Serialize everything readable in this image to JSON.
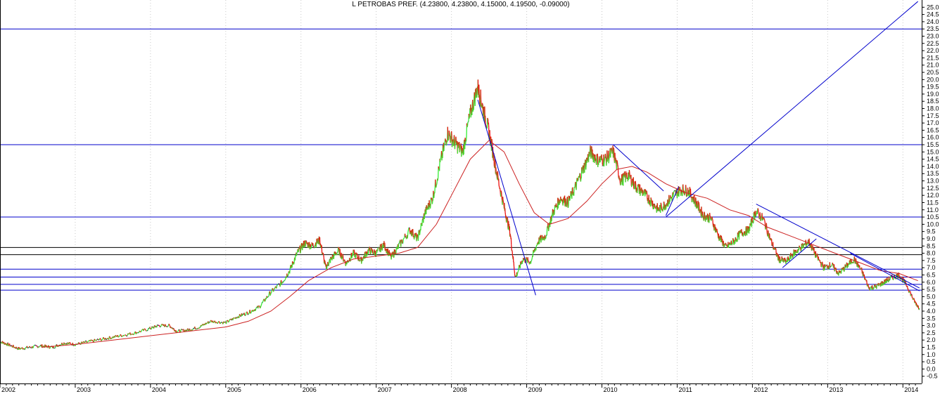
{
  "chart_data": {
    "type": "line",
    "title": "L PETROBAS PREF. (4.23800, 4.23800, 4.15000, 4.19500, -0.09000)",
    "xlabel": "",
    "ylabel": "",
    "xlim": [
      2002.0,
      2014.25
    ],
    "ylim": [
      -1.0,
      25.5
    ],
    "grid": true,
    "legend": "none",
    "x_ticks": [
      "2002",
      "2003",
      "2004",
      "2005",
      "2006",
      "2007",
      "2008",
      "2009",
      "2010",
      "2011",
      "2012",
      "2013",
      "2014"
    ],
    "y_ticks": [
      "-0.5",
      "0.0",
      "0.5",
      "1.0",
      "1.5",
      "2.0",
      "2.5",
      "3.0",
      "3.5",
      "4.0",
      "4.5",
      "5.0",
      "5.5",
      "6.0",
      "6.5",
      "7.0",
      "7.5",
      "8.0",
      "8.5",
      "9.0",
      "9.5",
      "10.0",
      "10.5",
      "11.0",
      "11.5",
      "12.0",
      "12.5",
      "13.0",
      "13.5",
      "14.0",
      "14.5",
      "15.0",
      "15.5",
      "16.0",
      "16.5",
      "17.0",
      "17.5",
      "18.0",
      "18.5",
      "19.0",
      "19.5",
      "20.0",
      "20.5",
      "21.0",
      "21.5",
      "22.0",
      "22.5",
      "23.0",
      "23.5",
      "24.0",
      "24.5",
      "25.0"
    ],
    "colors": {
      "up": "#33ee33",
      "down": "#ee1111",
      "neutral": "#000066",
      "moving_average": "#cc2222",
      "support_blue": "#0000cc",
      "support_black": "#000000",
      "trendline": "#0000cc",
      "grid": "#c8c8c8"
    },
    "series": [
      {
        "values": [
          [
            2002.0,
            1.9
          ],
          [
            2002.1,
            1.7
          ],
          [
            2002.25,
            1.4
          ],
          [
            2002.4,
            1.5
          ],
          [
            2002.55,
            1.6
          ],
          [
            2002.7,
            1.5
          ],
          [
            2002.85,
            1.8
          ],
          [
            2003.0,
            1.7
          ],
          [
            2003.2,
            1.9
          ],
          [
            2003.4,
            2.1
          ],
          [
            2003.6,
            2.3
          ],
          [
            2003.8,
            2.5
          ],
          [
            2004.0,
            2.8
          ],
          [
            2004.1,
            3.0
          ],
          [
            2004.25,
            3.0
          ],
          [
            2004.35,
            2.6
          ],
          [
            2004.5,
            2.7
          ],
          [
            2004.65,
            2.9
          ],
          [
            2004.8,
            3.3
          ],
          [
            2005.0,
            3.2
          ],
          [
            2005.15,
            3.6
          ],
          [
            2005.3,
            3.9
          ],
          [
            2005.45,
            4.3
          ],
          [
            2005.6,
            5.3
          ],
          [
            2005.75,
            6.0
          ],
          [
            2005.85,
            6.8
          ],
          [
            2005.95,
            8.0
          ],
          [
            2006.05,
            8.7
          ],
          [
            2006.15,
            8.5
          ],
          [
            2006.25,
            8.9
          ],
          [
            2006.33,
            7.0
          ],
          [
            2006.4,
            7.6
          ],
          [
            2006.5,
            8.2
          ],
          [
            2006.6,
            7.3
          ],
          [
            2006.7,
            8.0
          ],
          [
            2006.8,
            7.5
          ],
          [
            2006.9,
            8.2
          ],
          [
            2007.0,
            8.0
          ],
          [
            2007.1,
            8.6
          ],
          [
            2007.2,
            7.7
          ],
          [
            2007.3,
            8.5
          ],
          [
            2007.45,
            9.6
          ],
          [
            2007.55,
            9.0
          ],
          [
            2007.65,
            10.8
          ],
          [
            2007.75,
            11.8
          ],
          [
            2007.85,
            14.2
          ],
          [
            2007.95,
            16.3
          ],
          [
            2008.05,
            15.6
          ],
          [
            2008.15,
            15.0
          ],
          [
            2008.25,
            17.6
          ],
          [
            2008.35,
            19.5
          ],
          [
            2008.42,
            18.0
          ],
          [
            2008.5,
            16.4
          ],
          [
            2008.6,
            13.6
          ],
          [
            2008.7,
            11.2
          ],
          [
            2008.78,
            9.4
          ],
          [
            2008.85,
            6.3
          ],
          [
            2008.95,
            7.6
          ],
          [
            2009.05,
            7.4
          ],
          [
            2009.15,
            8.8
          ],
          [
            2009.25,
            9.2
          ],
          [
            2009.35,
            10.8
          ],
          [
            2009.45,
            11.8
          ],
          [
            2009.55,
            11.5
          ],
          [
            2009.65,
            12.6
          ],
          [
            2009.75,
            13.8
          ],
          [
            2009.85,
            15.0
          ],
          [
            2009.95,
            14.4
          ],
          [
            2010.05,
            14.5
          ],
          [
            2010.15,
            15.0
          ],
          [
            2010.25,
            13.0
          ],
          [
            2010.35,
            13.4
          ],
          [
            2010.45,
            12.6
          ],
          [
            2010.55,
            12.2
          ],
          [
            2010.65,
            11.6
          ],
          [
            2010.75,
            11.0
          ],
          [
            2010.85,
            11.4
          ],
          [
            2010.95,
            12.0
          ],
          [
            2011.05,
            12.4
          ],
          [
            2011.15,
            12.3
          ],
          [
            2011.25,
            11.5
          ],
          [
            2011.35,
            10.6
          ],
          [
            2011.45,
            10.4
          ],
          [
            2011.55,
            9.2
          ],
          [
            2011.65,
            8.4
          ],
          [
            2011.75,
            8.8
          ],
          [
            2011.85,
            9.4
          ],
          [
            2011.95,
            9.6
          ],
          [
            2012.05,
            10.9
          ],
          [
            2012.15,
            10.3
          ],
          [
            2012.25,
            8.8
          ],
          [
            2012.35,
            7.6
          ],
          [
            2012.45,
            7.4
          ],
          [
            2012.55,
            8.0
          ],
          [
            2012.65,
            8.4
          ],
          [
            2012.75,
            8.8
          ],
          [
            2012.85,
            7.8
          ],
          [
            2012.95,
            7.0
          ],
          [
            2013.05,
            7.2
          ],
          [
            2013.15,
            6.6
          ],
          [
            2013.25,
            7.1
          ],
          [
            2013.35,
            7.6
          ],
          [
            2013.45,
            6.8
          ],
          [
            2013.55,
            5.6
          ],
          [
            2013.65,
            5.7
          ],
          [
            2013.75,
            6.0
          ],
          [
            2013.85,
            6.3
          ],
          [
            2013.95,
            6.5
          ],
          [
            2014.05,
            5.8
          ],
          [
            2014.15,
            4.7
          ],
          [
            2014.22,
            4.2
          ]
        ]
      },
      {
        "values": [
          [
            2002.55,
            1.5
          ],
          [
            2003.0,
            1.7
          ],
          [
            2003.5,
            2.0
          ],
          [
            2004.0,
            2.3
          ],
          [
            2004.5,
            2.6
          ],
          [
            2005.0,
            2.9
          ],
          [
            2005.3,
            3.3
          ],
          [
            2005.6,
            4.0
          ],
          [
            2005.85,
            5.0
          ],
          [
            2006.1,
            6.1
          ],
          [
            2006.4,
            7.0
          ],
          [
            2006.7,
            7.6
          ],
          [
            2007.0,
            7.8
          ],
          [
            2007.3,
            8.0
          ],
          [
            2007.55,
            8.4
          ],
          [
            2007.8,
            10.0
          ],
          [
            2008.0,
            12.0
          ],
          [
            2008.25,
            14.5
          ],
          [
            2008.5,
            15.8
          ],
          [
            2008.7,
            15.0
          ],
          [
            2008.9,
            12.8
          ],
          [
            2009.1,
            10.8
          ],
          [
            2009.3,
            10.0
          ],
          [
            2009.55,
            10.4
          ],
          [
            2009.8,
            11.6
          ],
          [
            2010.0,
            12.8
          ],
          [
            2010.2,
            13.8
          ],
          [
            2010.4,
            14.0
          ],
          [
            2010.6,
            13.6
          ],
          [
            2010.85,
            12.8
          ],
          [
            2011.1,
            12.2
          ],
          [
            2011.4,
            11.8
          ],
          [
            2011.7,
            11.0
          ],
          [
            2011.95,
            10.6
          ],
          [
            2012.2,
            9.8
          ],
          [
            2012.5,
            9.2
          ],
          [
            2012.8,
            8.6
          ],
          [
            2013.1,
            8.0
          ],
          [
            2013.4,
            7.4
          ],
          [
            2013.7,
            6.8
          ],
          [
            2013.95,
            6.6
          ],
          [
            2014.2,
            6.1
          ]
        ]
      }
    ],
    "horizontal_lines": [
      {
        "y": 23.5,
        "color": "blue"
      },
      {
        "y": 15.5,
        "color": "blue"
      },
      {
        "y": 10.5,
        "color": "blue"
      },
      {
        "y": 8.4,
        "color": "black"
      },
      {
        "y": 7.9,
        "color": "black"
      },
      {
        "y": 6.9,
        "color": "blue"
      },
      {
        "y": 6.35,
        "color": "blue"
      },
      {
        "y": 5.85,
        "color": "blue"
      },
      {
        "y": 5.45,
        "color": "blue"
      }
    ],
    "trendlines": [
      {
        "x1": 2008.35,
        "y1": 18.6,
        "x2": 2009.12,
        "y2": 5.1
      },
      {
        "x1": 2010.15,
        "y1": 15.5,
        "x2": 2010.82,
        "y2": 12.3
      },
      {
        "x1": 2010.85,
        "y1": 10.5,
        "x2": 2014.2,
        "y2": 25.4
      },
      {
        "x1": 2011.02,
        "y1": 12.6,
        "x2": 2010.85,
        "y2": 10.6
      },
      {
        "x1": 2012.05,
        "y1": 11.4,
        "x2": 2014.22,
        "y2": 5.6
      },
      {
        "x1": 2012.4,
        "y1": 7.0,
        "x2": 2012.85,
        "y2": 9.0
      },
      {
        "x1": 2013.3,
        "y1": 8.0,
        "x2": 2014.22,
        "y2": 5.4
      }
    ]
  }
}
